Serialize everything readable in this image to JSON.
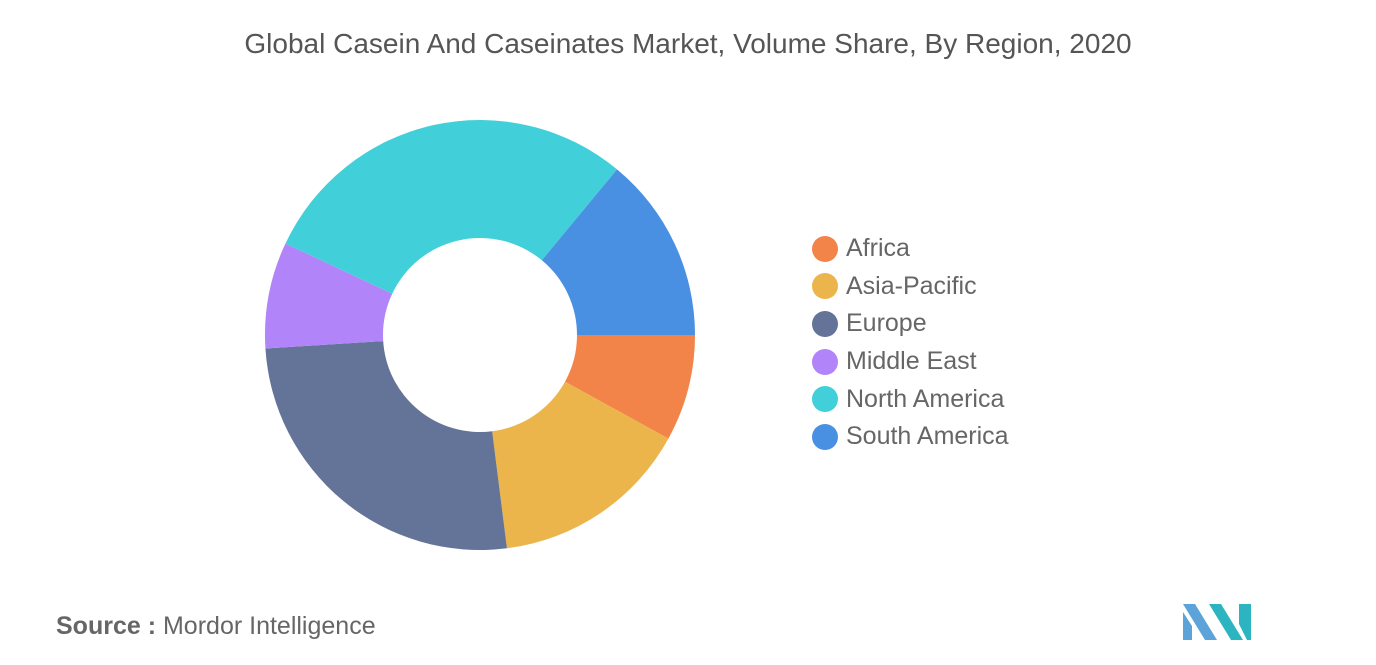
{
  "chart_data": {
    "type": "pie",
    "title": "Global Casein And Caseinates Market, Volume Share, By Region, 2020",
    "donut": true,
    "legend_position": "right",
    "categories": [
      "Africa",
      "Asia-Pacific",
      "Europe",
      "Middle East",
      "North America",
      "South America"
    ],
    "values": [
      8,
      15,
      26,
      8,
      29,
      14
    ],
    "colors": [
      "#F2844A",
      "#EBB54B",
      "#647498",
      "#B284F9",
      "#41D0D9",
      "#4A90E2"
    ],
    "value_unit": "%"
  },
  "footer": {
    "source_key": "Source :",
    "source_value": "Mordor Intelligence"
  },
  "logo": {
    "icon": "mordor-intelligence-logo-icon",
    "colors": [
      "#5BA3D9",
      "#2CB5C0"
    ]
  }
}
